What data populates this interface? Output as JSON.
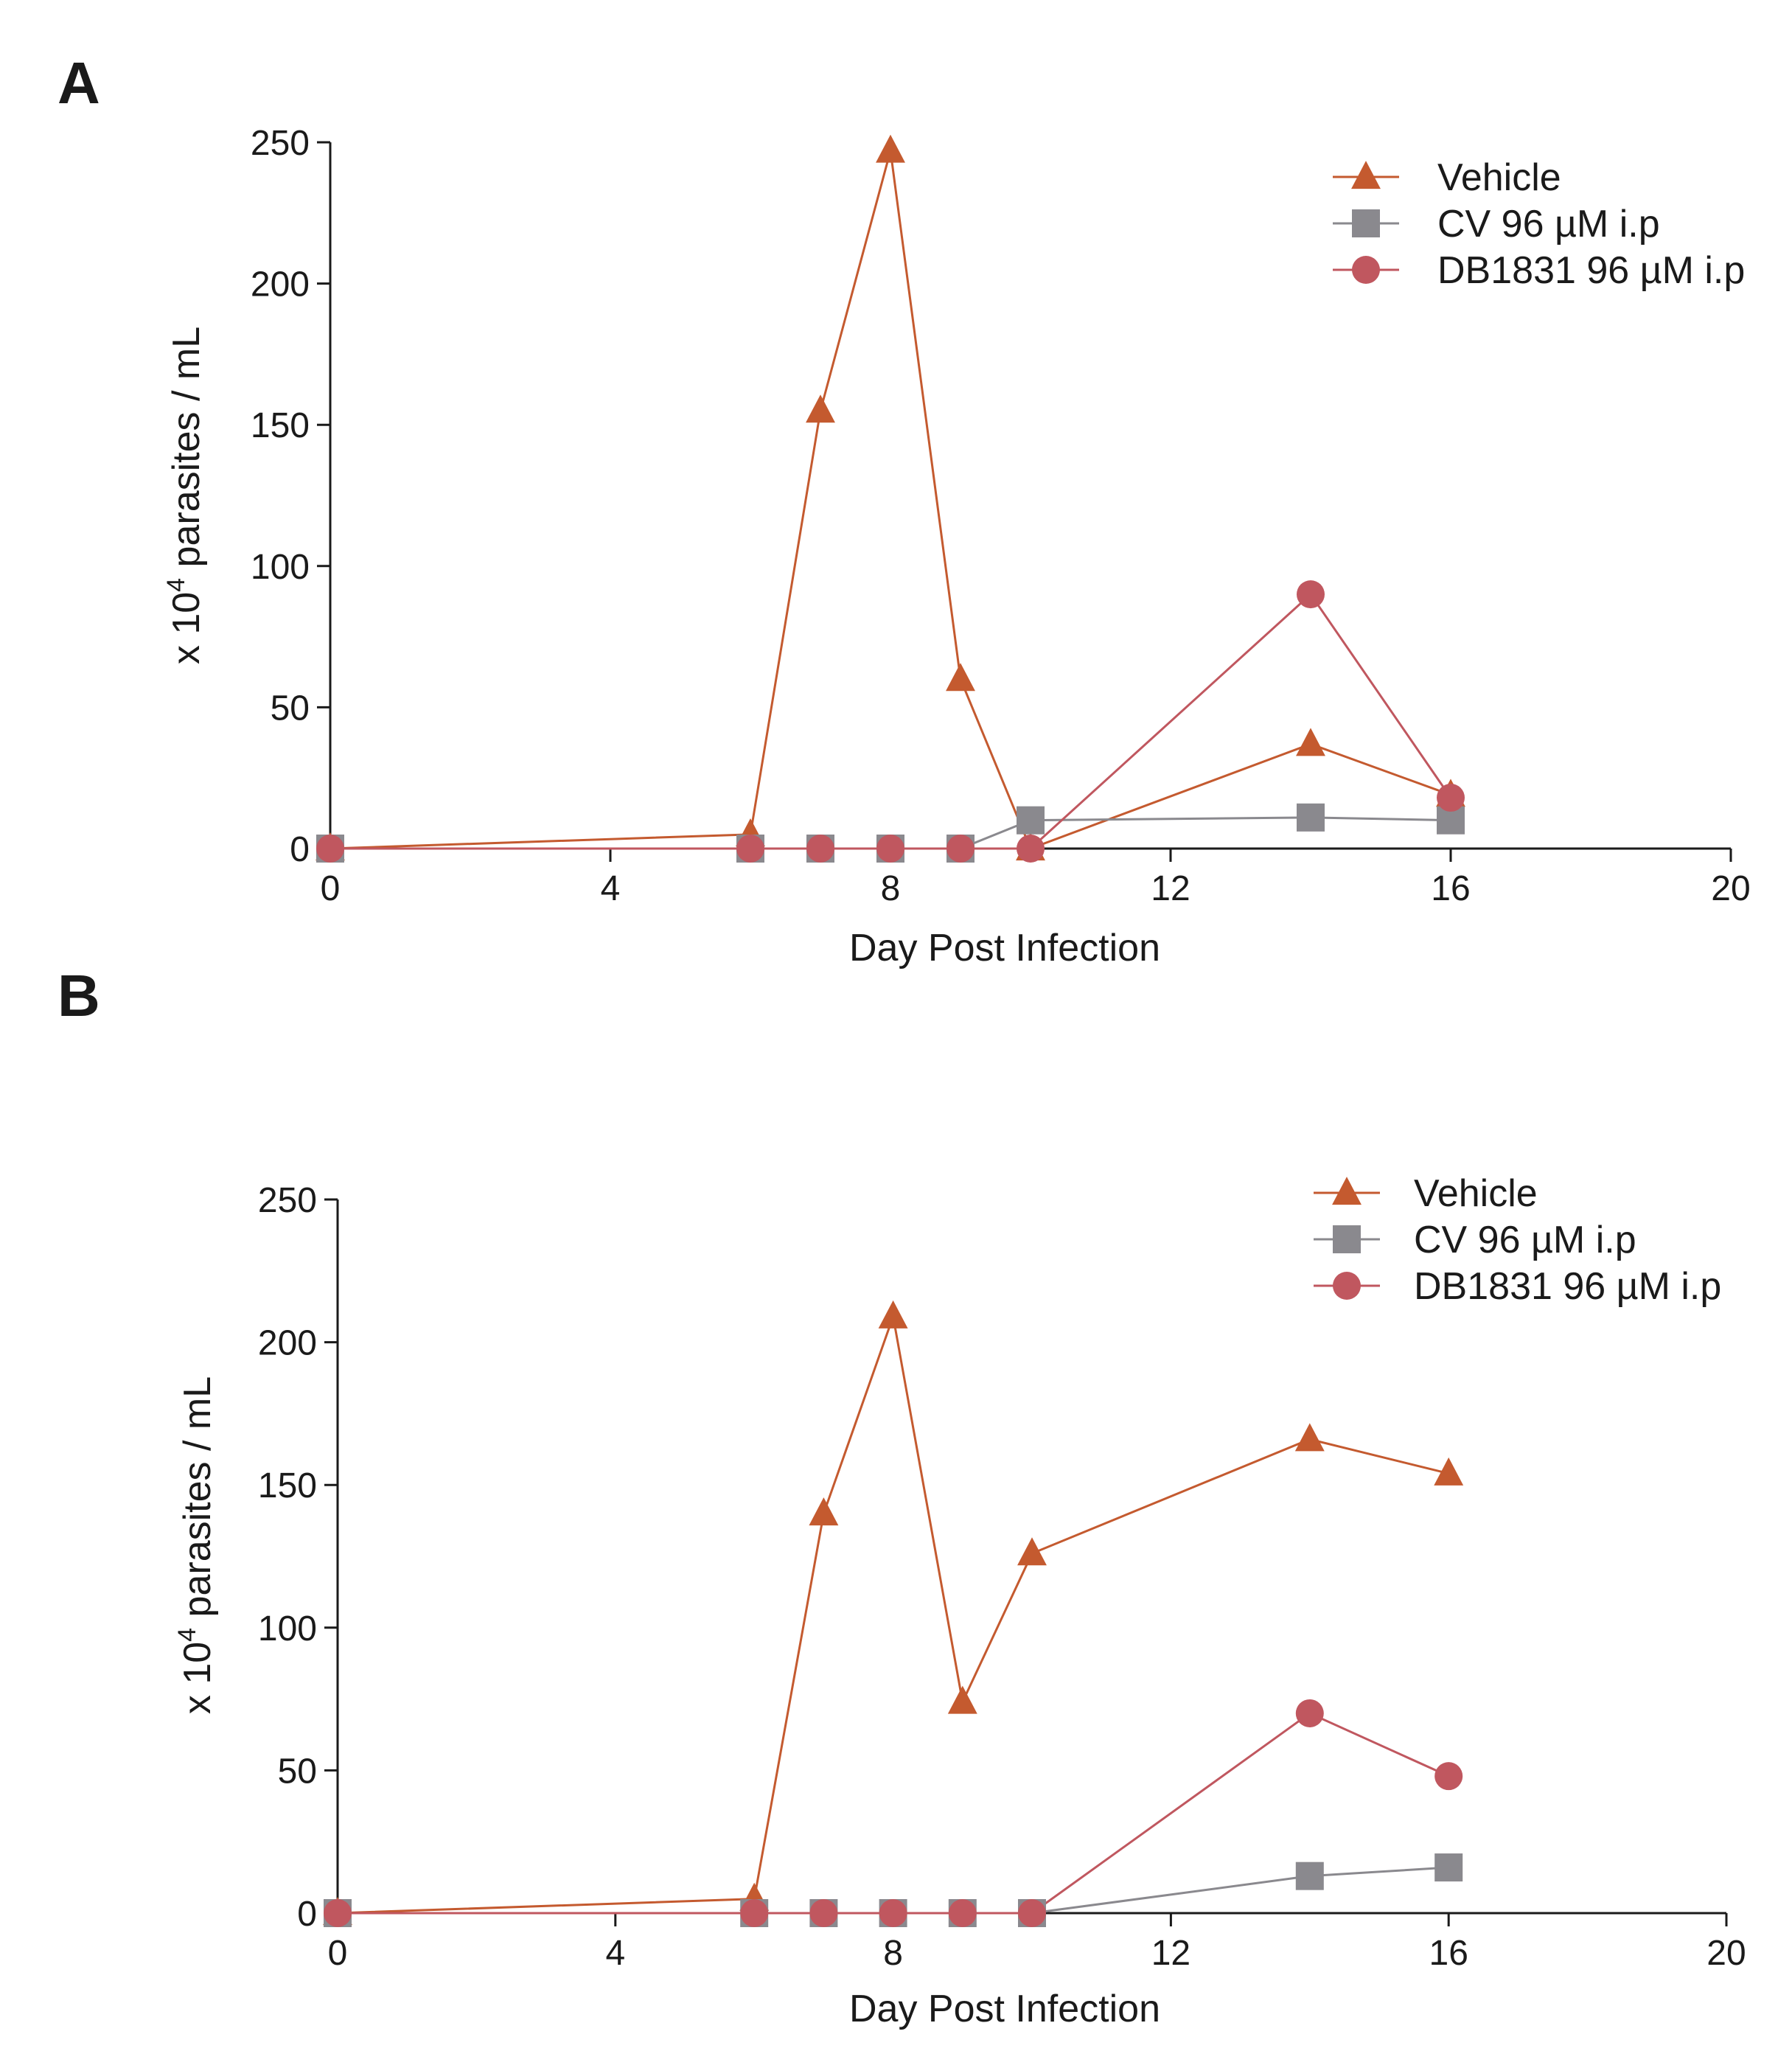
{
  "colors": {
    "vehicle": "#c45a2f",
    "cv": "#8a898e",
    "db1831": "#c0575f",
    "axis": "#1a1a1a"
  },
  "chart_data": [
    {
      "panel_label": "A",
      "type": "line",
      "xlabel": "Day Post Infection",
      "ylabel_prefix": "x 10",
      "ylabel_sup": "4",
      "ylabel_suffix": " parasites / mL",
      "xlim": [
        0,
        20
      ],
      "ylim": [
        0,
        250
      ],
      "xticks": [
        0,
        4,
        8,
        12,
        16,
        20
      ],
      "yticks": [
        0,
        50,
        100,
        150,
        200,
        250
      ],
      "legend_position": "top-right",
      "series": [
        {
          "name": "Vehicle",
          "marker": "triangle",
          "color": "#c45a2f",
          "x": [
            0,
            6,
            7,
            8,
            9,
            10,
            14,
            16
          ],
          "y": [
            0,
            5,
            155,
            247,
            60,
            0,
            37,
            19
          ]
        },
        {
          "name": "CV 96 µM i.p",
          "marker": "square",
          "color": "#8a898e",
          "x": [
            0,
            6,
            7,
            8,
            9,
            10,
            14,
            16
          ],
          "y": [
            0,
            0,
            0,
            0,
            0,
            10,
            11,
            10
          ]
        },
        {
          "name": "DB1831 96 µM i.p",
          "marker": "circle",
          "color": "#c0575f",
          "x": [
            0,
            6,
            7,
            8,
            9,
            10,
            14,
            16
          ],
          "y": [
            0,
            0,
            0,
            0,
            0,
            0,
            90,
            18
          ]
        }
      ]
    },
    {
      "panel_label": "B",
      "type": "line",
      "xlabel": "Day Post Infection",
      "ylabel_prefix": "x 10",
      "ylabel_sup": "4",
      "ylabel_suffix": " parasites / mL",
      "xlim": [
        0,
        20
      ],
      "ylim": [
        0,
        250
      ],
      "xticks": [
        0,
        4,
        8,
        12,
        16,
        20
      ],
      "yticks": [
        0,
        50,
        100,
        150,
        200,
        250
      ],
      "legend_position": "top-right",
      "series": [
        {
          "name": "Vehicle",
          "marker": "triangle",
          "color": "#c45a2f",
          "x": [
            0,
            6,
            7,
            8,
            9,
            10,
            14,
            16
          ],
          "y": [
            0,
            5,
            140,
            209,
            74,
            126,
            166,
            154
          ]
        },
        {
          "name": "CV 96 µM i.p",
          "marker": "square",
          "color": "#8a898e",
          "x": [
            0,
            6,
            7,
            8,
            9,
            10,
            14,
            16
          ],
          "y": [
            0,
            0,
            0,
            0,
            0,
            0,
            13,
            16
          ]
        },
        {
          "name": "DB1831 96 µM i.p",
          "marker": "circle",
          "color": "#c0575f",
          "x": [
            0,
            6,
            7,
            8,
            9,
            10,
            14,
            16
          ],
          "y": [
            0,
            0,
            0,
            0,
            0,
            0,
            70,
            48
          ]
        }
      ]
    }
  ]
}
